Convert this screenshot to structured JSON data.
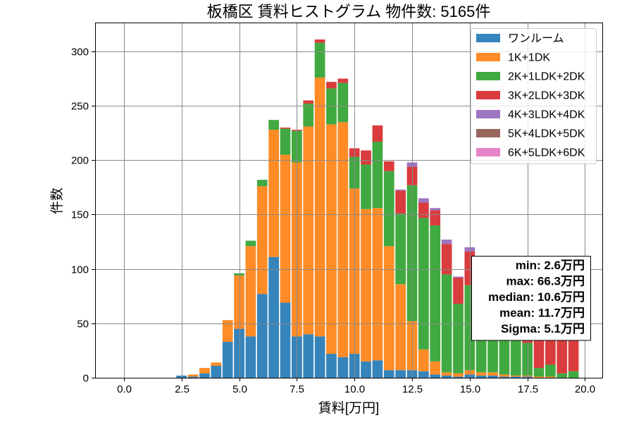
{
  "chart_data": {
    "type": "bar",
    "stacked": true,
    "title": "板橋区 賃料ヒストグラム 物件数: 5165件",
    "xlabel": "賃料[万円]",
    "ylabel": "件数",
    "xlim": [
      -1.25,
      20.75
    ],
    "ylim": [
      0,
      326.55
    ],
    "grid": true,
    "legend_position": "top-right",
    "xticks": [
      0,
      2.5,
      5,
      7.5,
      10,
      12.5,
      15,
      17.5,
      20
    ],
    "xtick_labels": [
      "0.0",
      "2.5",
      "5.0",
      "7.5",
      "10.0",
      "12.5",
      "15.0",
      "17.5",
      "20.0"
    ],
    "yticks": [
      0,
      50,
      100,
      150,
      200,
      250,
      300
    ],
    "ytick_labels": [
      "0",
      "50",
      "100",
      "150",
      "200",
      "250",
      "300"
    ],
    "x": [
      0,
      0.5,
      1,
      1.5,
      2,
      2.5,
      3,
      3.5,
      4,
      4.5,
      5,
      5.5,
      6,
      6.5,
      7,
      7.5,
      8,
      8.5,
      9,
      9.5,
      10,
      10.5,
      11,
      11.5,
      12,
      12.5,
      13,
      13.5,
      14,
      14.5,
      15,
      15.5,
      16,
      16.5,
      17,
      17.5,
      18,
      18.5,
      19,
      19.5
    ],
    "series": [
      {
        "name": "ワンルーム",
        "color": "#1f77b4",
        "values": [
          0,
          0,
          0,
          0,
          0,
          2,
          1,
          4,
          11,
          33,
          45,
          38,
          77,
          111,
          69,
          38,
          40,
          38,
          22,
          19,
          22,
          15,
          16,
          7,
          7,
          7,
          6,
          3,
          2,
          1,
          3,
          2,
          2,
          1,
          1,
          1,
          0,
          0,
          0,
          0
        ]
      },
      {
        "name": "1K+1DK",
        "color": "#ff7f0e",
        "values": [
          0,
          0,
          0,
          0,
          0,
          0,
          2,
          5,
          3,
          20,
          49,
          83,
          99,
          117,
          136,
          160,
          191,
          238,
          211,
          216,
          152,
          140,
          140,
          114,
          79,
          45,
          20,
          12,
          3,
          3,
          4,
          3,
          3,
          2,
          1,
          1,
          1,
          1,
          0,
          0
        ]
      },
      {
        "name": "2K+1LDK+2DK",
        "color": "#2ca02c",
        "values": [
          0,
          0,
          0,
          0,
          0,
          0,
          0,
          0,
          0,
          0,
          2,
          5,
          6,
          9,
          24,
          29,
          21,
          32,
          33,
          36,
          29,
          41,
          61,
          69,
          65,
          125,
          121,
          125,
          90,
          64,
          78,
          62,
          58,
          52,
          45,
          30,
          8,
          11,
          4,
          6
        ]
      },
      {
        "name": "3K+2LDK+3DK",
        "color": "#d62728",
        "values": [
          0,
          0,
          0,
          0,
          0,
          0,
          0,
          0,
          0,
          0,
          0,
          0,
          0,
          0,
          1,
          1,
          3,
          3,
          6,
          4,
          8,
          13,
          15,
          9,
          21,
          17,
          14,
          14,
          28,
          24,
          31,
          28,
          32,
          33,
          38,
          45,
          62,
          60,
          64,
          58
        ]
      },
      {
        "name": "4K+3LDK+4DK",
        "color": "#9467bd",
        "values": [
          0,
          0,
          0,
          0,
          0,
          0,
          0,
          0,
          0,
          0,
          0,
          0,
          0,
          0,
          0,
          0,
          0,
          0,
          0,
          0,
          0,
          0,
          0,
          0,
          1,
          4,
          4,
          2,
          4,
          1,
          4,
          3,
          4,
          3,
          4,
          5,
          4,
          5,
          4,
          5
        ]
      },
      {
        "name": "5K+4LDK+5DK",
        "color": "#8c564b",
        "values": [
          0,
          0,
          0,
          0,
          0,
          0,
          0,
          0,
          0,
          0,
          0,
          0,
          0,
          0,
          0,
          0,
          0,
          0,
          0,
          0,
          0,
          0,
          0,
          0,
          0,
          0,
          0,
          0,
          0,
          0,
          0,
          0,
          0,
          0,
          0,
          0,
          0,
          0,
          0,
          0
        ]
      },
      {
        "name": "6K+5LDK+6DK",
        "color": "#e377c2",
        "values": [
          0,
          0,
          0,
          0,
          0,
          0,
          0,
          0,
          0,
          0,
          0,
          0,
          0,
          0,
          0,
          0,
          0,
          0,
          0,
          0,
          0,
          0,
          0,
          0,
          0,
          0,
          0,
          0,
          0,
          0,
          0,
          0,
          0,
          0,
          0,
          0,
          0,
          0,
          0,
          0
        ]
      }
    ],
    "annotation": {
      "position": "center-right",
      "lines": [
        "min: 2.6万円",
        "max: 66.3万円",
        "median: 10.6万円",
        "mean: 11.7万円",
        "Sigma: 5.1万円"
      ]
    }
  }
}
